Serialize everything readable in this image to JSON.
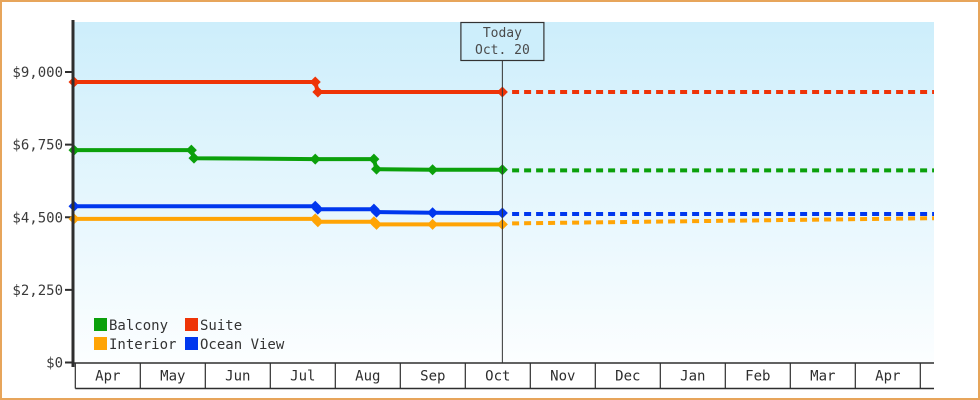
{
  "chart_data": {
    "type": "line",
    "today": {
      "line1": "Today",
      "line2": "Oct. 20",
      "month_offset": 6.57
    },
    "x_axis": {
      "unit": "months",
      "labels": [
        "Apr",
        "May",
        "Jun",
        "Jul",
        "Aug",
        "Sep",
        "Oct",
        "Nov",
        "Dec",
        "Jan",
        "Feb",
        "Mar",
        "Apr"
      ]
    },
    "y_axis": {
      "ticks": [
        {
          "label": "$0",
          "value": 0
        },
        {
          "label": "$2,250",
          "value": 2250
        },
        {
          "label": "$4,500",
          "value": 4500
        },
        {
          "label": "$6,750",
          "value": 6750
        },
        {
          "label": "$9,000",
          "value": 9000
        }
      ],
      "max": 9000
    },
    "series": [
      {
        "name": "Balcony",
        "color": "#0ba00b",
        "points": [
          [
            0,
            6580
          ],
          [
            1.8,
            6580
          ],
          [
            1.84,
            6330
          ],
          [
            3.7,
            6300
          ],
          [
            4.6,
            6300
          ],
          [
            4.64,
            5990
          ],
          [
            5.5,
            5970
          ],
          [
            6.57,
            5970
          ]
        ],
        "projection": [
          [
            6.72,
            5950
          ],
          [
            13.19,
            5950
          ]
        ]
      },
      {
        "name": "Suite",
        "color": "#ee3407",
        "points": [
          [
            0,
            8690
          ],
          [
            3.7,
            8690
          ],
          [
            3.74,
            8380
          ],
          [
            6.57,
            8380
          ]
        ],
        "projection": [
          [
            6.72,
            8380
          ],
          [
            13.19,
            8380
          ]
        ]
      },
      {
        "name": "Interior",
        "color": "#ffa405",
        "points": [
          [
            0,
            4450
          ],
          [
            3.7,
            4450
          ],
          [
            3.74,
            4360
          ],
          [
            4.6,
            4360
          ],
          [
            4.64,
            4280
          ],
          [
            5.5,
            4280
          ],
          [
            6.57,
            4280
          ]
        ],
        "projection": [
          [
            6.72,
            4310
          ],
          [
            13.19,
            4470
          ]
        ]
      },
      {
        "name": "Ocean View",
        "color": "#0037ee",
        "points": [
          [
            0,
            4840
          ],
          [
            3.7,
            4840
          ],
          [
            3.74,
            4750
          ],
          [
            4.6,
            4750
          ],
          [
            4.64,
            4660
          ],
          [
            5.5,
            4640
          ],
          [
            6.57,
            4630
          ]
        ],
        "projection": [
          [
            6.72,
            4600
          ],
          [
            13.19,
            4600
          ]
        ]
      }
    ],
    "colors": {
      "plot_bg_top": "#cdeefb",
      "plot_bg_bottom": "#fcfeff",
      "axis": "#2e2e2e",
      "frame_border": "#e7a55b"
    }
  }
}
